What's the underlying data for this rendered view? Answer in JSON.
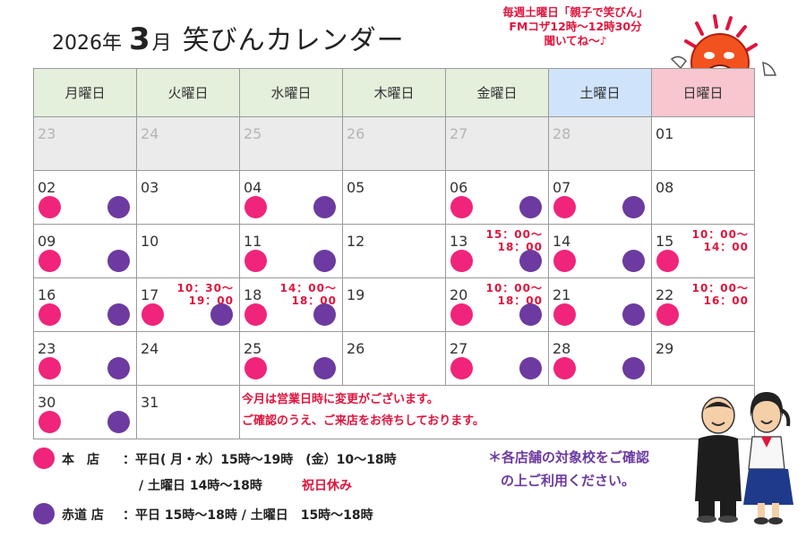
{
  "title": {
    "year": "2026年",
    "month": "3",
    "month_kanji": "月",
    "name": "笑びんカレンダー"
  },
  "radio": {
    "line1": "毎週土曜日「親子で笑びん」",
    "line2": "FMコザ12時～12時30分",
    "line3": "聞いてね～♪"
  },
  "weekdays": [
    "月曜日",
    "火曜日",
    "水曜日",
    "木曜日",
    "金曜日",
    "土曜日",
    "日曜日"
  ],
  "weeks": [
    [
      {
        "d": "23",
        "prev": true,
        "pink": false,
        "purple": false,
        "time": ""
      },
      {
        "d": "24",
        "prev": true,
        "pink": false,
        "purple": false,
        "time": ""
      },
      {
        "d": "25",
        "prev": true,
        "pink": false,
        "purple": false,
        "time": ""
      },
      {
        "d": "26",
        "prev": true,
        "pink": false,
        "purple": false,
        "time": ""
      },
      {
        "d": "27",
        "prev": true,
        "pink": false,
        "purple": false,
        "time": ""
      },
      {
        "d": "28",
        "prev": true,
        "pink": false,
        "purple": false,
        "time": ""
      },
      {
        "d": "01",
        "prev": false,
        "pink": false,
        "purple": false,
        "time": ""
      }
    ],
    [
      {
        "d": "02",
        "pink": true,
        "purple": true,
        "time": ""
      },
      {
        "d": "03",
        "pink": false,
        "purple": false,
        "time": ""
      },
      {
        "d": "04",
        "pink": true,
        "purple": true,
        "time": ""
      },
      {
        "d": "05",
        "pink": false,
        "purple": false,
        "time": ""
      },
      {
        "d": "06",
        "pink": true,
        "purple": true,
        "time": ""
      },
      {
        "d": "07",
        "pink": true,
        "purple": true,
        "time": ""
      },
      {
        "d": "08",
        "pink": false,
        "purple": false,
        "time": ""
      }
    ],
    [
      {
        "d": "09",
        "pink": true,
        "purple": true,
        "time": ""
      },
      {
        "d": "10",
        "pink": false,
        "purple": false,
        "time": ""
      },
      {
        "d": "11",
        "pink": true,
        "purple": true,
        "time": ""
      },
      {
        "d": "12",
        "pink": false,
        "purple": false,
        "time": ""
      },
      {
        "d": "13",
        "pink": true,
        "purple": true,
        "time": "15：00～\n18：00"
      },
      {
        "d": "14",
        "pink": true,
        "purple": true,
        "time": ""
      },
      {
        "d": "15",
        "pink": true,
        "purple": false,
        "time": "10：00～\n14：00"
      }
    ],
    [
      {
        "d": "16",
        "pink": true,
        "purple": true,
        "time": ""
      },
      {
        "d": "17",
        "pink": true,
        "purple": true,
        "time": "10：30～\n19：00"
      },
      {
        "d": "18",
        "pink": true,
        "purple": true,
        "time": "14：00～\n18：00"
      },
      {
        "d": "19",
        "pink": false,
        "purple": false,
        "time": ""
      },
      {
        "d": "20",
        "pink": true,
        "purple": true,
        "time": "10：00～\n18：00"
      },
      {
        "d": "21",
        "pink": true,
        "purple": true,
        "time": ""
      },
      {
        "d": "22",
        "pink": true,
        "purple": false,
        "time": "10：00～\n16：00"
      }
    ],
    [
      {
        "d": "23",
        "pink": true,
        "purple": true,
        "time": ""
      },
      {
        "d": "24",
        "pink": false,
        "purple": false,
        "time": ""
      },
      {
        "d": "25",
        "pink": true,
        "purple": true,
        "time": ""
      },
      {
        "d": "26",
        "pink": false,
        "purple": false,
        "time": ""
      },
      {
        "d": "27",
        "pink": true,
        "purple": true,
        "time": ""
      },
      {
        "d": "28",
        "pink": true,
        "purple": true,
        "time": ""
      },
      {
        "d": "29",
        "pink": false,
        "purple": false,
        "time": ""
      }
    ],
    [
      {
        "d": "30",
        "pink": true,
        "purple": true,
        "time": ""
      },
      {
        "d": "31",
        "pink": false,
        "purple": false,
        "time": ""
      }
    ]
  ],
  "notice": {
    "line1": "今月は営業日時に変更がございます。",
    "line2": "ご確認のうえ、ご来店をお待ちしております。"
  },
  "legend": {
    "main_store": "本　店",
    "main_hours_1": "：平日( 月・水）15時～19時　(金）10～18時",
    "main_hours_2": "/ 土曜日 14時～18時",
    "main_holiday": "祝日休み",
    "branch_store": "赤道 店",
    "branch_hours": "：平日 15時～18時 / 土曜日　15時～18時"
  },
  "side_note": {
    "line1": "＊各店舗の対象校をご確認",
    "line2": "の上ご利用ください。"
  },
  "colors": {
    "main_store": "#f0247a",
    "branch_store": "#6c3aa0",
    "accent_red": "#e0143c"
  }
}
